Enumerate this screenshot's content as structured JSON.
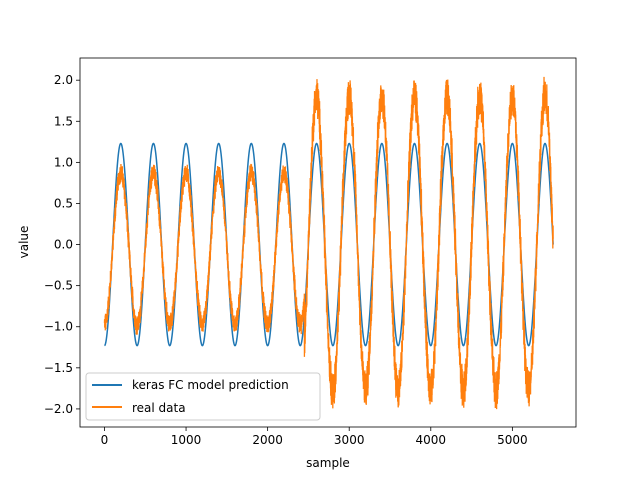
{
  "chart_data": {
    "type": "line",
    "title": "",
    "xlabel": "sample",
    "ylabel": "value",
    "xlim": [
      -300,
      5780
    ],
    "ylim": [
      -2.22,
      2.27
    ],
    "xticks": [
      0,
      1000,
      2000,
      3000,
      4000,
      5000
    ],
    "xtick_labels": [
      "0",
      "1000",
      "2000",
      "3000",
      "4000",
      "5000"
    ],
    "yticks": [
      -2.0,
      -1.5,
      -1.0,
      -0.5,
      0.0,
      0.5,
      1.0,
      1.5,
      2.0
    ],
    "ytick_labels": [
      "−2.0",
      "−1.5",
      "−1.0",
      "−0.5",
      "0.0",
      "0.5",
      "1.0",
      "1.5",
      "2.0"
    ],
    "grid": false,
    "legend_position": "lower-left",
    "series": [
      {
        "name": "keras FC model prediction",
        "color": "#1f77b4",
        "x_start": 0,
        "x_end": 5500,
        "period": 400,
        "amplitude": 1.23,
        "phase_min_at": 0,
        "shape": "sinusoid"
      },
      {
        "name": "real data",
        "color": "#ff7f0e",
        "x_start": 0,
        "x_end": 5500,
        "period": 400,
        "phase_min_at": 0,
        "shape": "noisy sinusoid",
        "segments": [
          {
            "x_from": 0,
            "x_to": 2450,
            "peak_max": 1.0,
            "trough_min": -1.1
          },
          {
            "x_from": 2450,
            "x_to": 5500,
            "peak_max": 2.05,
            "trough_min": -2.02
          }
        ]
      }
    ]
  }
}
